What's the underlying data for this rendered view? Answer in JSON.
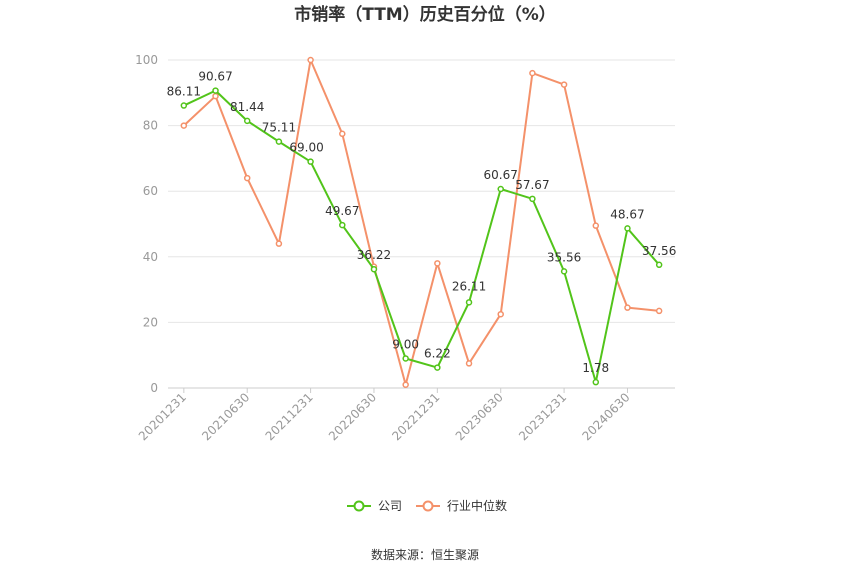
{
  "chart_data": {
    "type": "line",
    "title": "市销率（TTM）历史百分位（%）",
    "x": [
      "20201231",
      "",
      "20210630",
      "",
      "20211231",
      "",
      "20220630",
      "",
      "20221231",
      "",
      "20230630",
      "",
      "20231231",
      "",
      "20240630",
      ""
    ],
    "x_tick_labels": [
      "20201231",
      "20210630",
      "20211231",
      "20220630",
      "20221231",
      "20230630",
      "20231231",
      "20240630"
    ],
    "ylim": [
      0,
      100
    ],
    "yticks": [
      0,
      20,
      40,
      60,
      80,
      100
    ],
    "grid": true,
    "legend_position": "bottom",
    "series": [
      {
        "name": "公司",
        "color": "#52c41a",
        "values": [
          86.11,
          90.67,
          81.44,
          75.11,
          69.0,
          49.67,
          36.22,
          9.0,
          6.22,
          26.11,
          60.67,
          57.67,
          35.56,
          1.78,
          48.67,
          37.56
        ],
        "labels": [
          "86.11",
          "90.67",
          "81.44",
          "75.11",
          "69.00",
          "49.67",
          "36.22",
          "9.00",
          "6.22",
          "26.11",
          "60.67",
          "57.67",
          "35.56",
          "1.78",
          "48.67",
          "37.56"
        ]
      },
      {
        "name": "行业中位数",
        "color": "#f4916a",
        "values": [
          80,
          89,
          64,
          44,
          100,
          77.5,
          37,
          1,
          38,
          7.5,
          22.5,
          96,
          92.5,
          49.5,
          24.5,
          23.5
        ]
      }
    ]
  },
  "source": "数据来源：恒生聚源"
}
